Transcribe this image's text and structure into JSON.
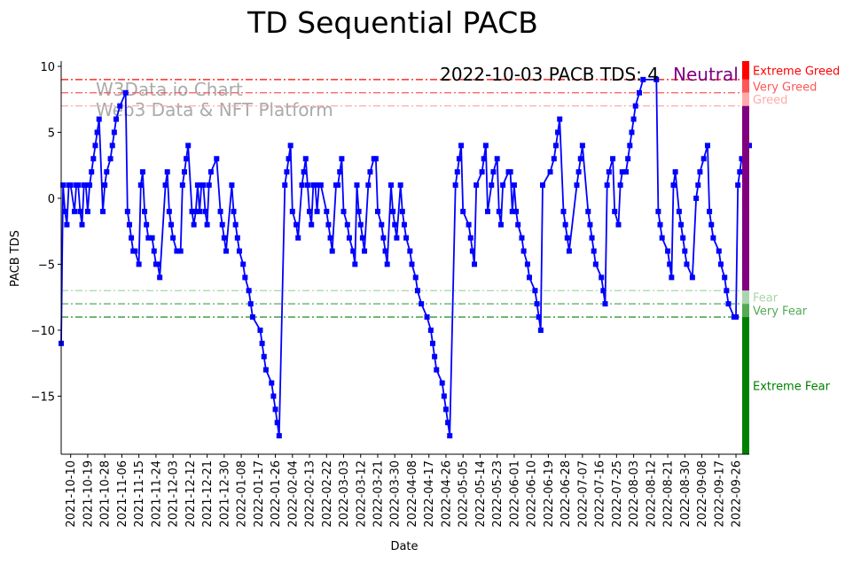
{
  "chart_data": {
    "type": "line",
    "title": "TD Sequential PACB",
    "xlabel": "Date",
    "ylabel": "PACB TDS",
    "start_date": "2021-10-05",
    "x_days": [
      0,
      1,
      2,
      3,
      4,
      5,
      7,
      8,
      9,
      10,
      11,
      12,
      13,
      14,
      15,
      16,
      17,
      18,
      19,
      20,
      22,
      23,
      24,
      26,
      27,
      28,
      29,
      31,
      34,
      35,
      36,
      37,
      38,
      39,
      41,
      42,
      43,
      44,
      45,
      46,
      48,
      49,
      50,
      51,
      52,
      55,
      56,
      57,
      58,
      59,
      61,
      63,
      64,
      65,
      66,
      67,
      69,
      70,
      71,
      72,
      73,
      74,
      75,
      76,
      77,
      78,
      79,
      82,
      84,
      85,
      86,
      87,
      90,
      91,
      92,
      93,
      94,
      96,
      97,
      99,
      100,
      101,
      105,
      106,
      107,
      108,
      111,
      112,
      113,
      114,
      115,
      118,
      119,
      120,
      121,
      122,
      124,
      125,
      127,
      128,
      129,
      130,
      131,
      132,
      133,
      134,
      135,
      136,
      137,
      140,
      141,
      142,
      143,
      145,
      146,
      147,
      148,
      149,
      151,
      152,
      154,
      155,
      156,
      157,
      158,
      159,
      160,
      162,
      163,
      165,
      166,
      167,
      169,
      170,
      171,
      172,
      174,
      175,
      176,
      177,
      179,
      180,
      181,
      182,
      184,
      185,
      187,
      188,
      190,
      193,
      195,
      196,
      197,
      198,
      201,
      202,
      203,
      204,
      205,
      208,
      209,
      210,
      211,
      212,
      215,
      216,
      217,
      218,
      219,
      222,
      223,
      224,
      225,
      227,
      228,
      230,
      231,
      232,
      233,
      236,
      237,
      238,
      239,
      240,
      241,
      243,
      244,
      246,
      247,
      250,
      251,
      252,
      253,
      254,
      258,
      260,
      261,
      262,
      263,
      265,
      266,
      267,
      268,
      272,
      273,
      274,
      275,
      278,
      279,
      280,
      281,
      282,
      285,
      286,
      287,
      288,
      289,
      291,
      292,
      294,
      295,
      296,
      298,
      299,
      300,
      301,
      302,
      303,
      305,
      307,
      314,
      315,
      316,
      317,
      320,
      321,
      322,
      323,
      324,
      326,
      327,
      328,
      329,
      330,
      333,
      335,
      336,
      337,
      339,
      341,
      342,
      343,
      344,
      347,
      348,
      350,
      351,
      352,
      355,
      356,
      357,
      358,
      359,
      363
    ],
    "values": [
      -11,
      1,
      -1,
      -2,
      1,
      1,
      -1,
      1,
      1,
      -1,
      -2,
      1,
      1,
      -1,
      1,
      2,
      3,
      4,
      5,
      6,
      -1,
      1,
      2,
      3,
      4,
      5,
      6,
      7,
      8,
      -1,
      -2,
      -3,
      -4,
      -4,
      -5,
      1,
      2,
      -1,
      -2,
      -3,
      -3,
      -4,
      -5,
      -5,
      -6,
      1,
      2,
      -1,
      -2,
      -3,
      -4,
      -4,
      1,
      2,
      3,
      4,
      -1,
      -2,
      -1,
      1,
      -1,
      1,
      1,
      -1,
      -2,
      1,
      2,
      3,
      -1,
      -2,
      -3,
      -4,
      1,
      -1,
      -2,
      -3,
      -4,
      -5,
      -6,
      -7,
      -8,
      -9,
      -10,
      -11,
      -12,
      -13,
      -14,
      -15,
      -16,
      -17,
      -18,
      1,
      2,
      3,
      4,
      -1,
      -2,
      -3,
      1,
      2,
      3,
      1,
      -1,
      -2,
      1,
      1,
      -1,
      1,
      1,
      -1,
      -2,
      -3,
      -4,
      1,
      1,
      2,
      3,
      -1,
      -2,
      -3,
      -4,
      -5,
      1,
      -1,
      -2,
      -3,
      -4,
      1,
      2,
      3,
      3,
      -1,
      -2,
      -3,
      -4,
      -5,
      1,
      -1,
      -2,
      -3,
      1,
      -1,
      -2,
      -3,
      -4,
      -5,
      -6,
      -7,
      -8,
      -9,
      -10,
      -11,
      -12,
      -13,
      -14,
      -15,
      -16,
      -17,
      -18,
      1,
      2,
      3,
      4,
      -1,
      -2,
      -3,
      -4,
      -5,
      1,
      2,
      3,
      4,
      -1,
      1,
      2,
      3,
      -1,
      -2,
      1,
      2,
      2,
      -1,
      1,
      -1,
      -2,
      -3,
      -4,
      -5,
      -6,
      -7,
      -8,
      -9,
      -10,
      1,
      2,
      3,
      4,
      5,
      6,
      -1,
      -2,
      -3,
      -4,
      1,
      2,
      3,
      4,
      -1,
      -2,
      -3,
      -4,
      -5,
      -6,
      -7,
      -8,
      1,
      2,
      3,
      -1,
      -2,
      1,
      2,
      2,
      3,
      4,
      5,
      6,
      7,
      8,
      9,
      9,
      -1,
      -2,
      -3,
      -4,
      -5,
      -6,
      1,
      2,
      -1,
      -2,
      -3,
      -4,
      -5,
      -6,
      0,
      1,
      2,
      3,
      4,
      -1,
      -2,
      -3,
      -4,
      -5,
      -6,
      -7,
      -8,
      -9,
      -9,
      1,
      2,
      3,
      4
    ],
    "series_color": "#0000ff",
    "ylim": [
      -19.4,
      10.4
    ],
    "yticks": [
      10,
      5,
      0,
      -5,
      -10,
      -15
    ],
    "xtick_labels": [
      "2021-10-10",
      "2021-10-19",
      "2021-10-28",
      "2021-11-06",
      "2021-11-15",
      "2021-11-24",
      "2021-12-03",
      "2021-12-12",
      "2021-12-21",
      "2021-12-30",
      "2022-01-08",
      "2022-01-17",
      "2022-01-26",
      "2022-02-04",
      "2022-02-13",
      "2022-02-22",
      "2022-03-03",
      "2022-03-12",
      "2022-03-21",
      "2022-03-30",
      "2022-04-08",
      "2022-04-17",
      "2022-04-26",
      "2022-05-05",
      "2022-05-14",
      "2022-05-23",
      "2022-06-01",
      "2022-06-10",
      "2022-06-19",
      "2022-06-28",
      "2022-07-07",
      "2022-07-16",
      "2022-07-25",
      "2022-08-03",
      "2022-08-12",
      "2022-08-21",
      "2022-08-30",
      "2022-09-08",
      "2022-09-17",
      "2022-09-26"
    ],
    "thresholds": [
      {
        "value": 9,
        "color": "#ff0000"
      },
      {
        "value": 8,
        "color": "#ff5555"
      },
      {
        "value": 7,
        "color": "#ffaaaa"
      },
      {
        "value": -7,
        "color": "#aad5aa"
      },
      {
        "value": -8,
        "color": "#55aa55"
      },
      {
        "value": -9,
        "color": "#008000"
      }
    ],
    "zones": [
      {
        "label": "Extreme Greed",
        "from": 9,
        "to": 10.4,
        "color": "#ff0000",
        "label_value": 9.7
      },
      {
        "label": "Very Greed",
        "from": 8,
        "to": 9,
        "color": "#ff5555",
        "label_value": 8.5
      },
      {
        "label": "Greed",
        "from": 7,
        "to": 8,
        "color": "#ffaaaa",
        "label_value": 7.5
      },
      {
        "label": "",
        "from": -7,
        "to": 7,
        "color": "#800080",
        "label_value": 0
      },
      {
        "label": "Fear",
        "from": -8,
        "to": -7,
        "color": "#aad5aa",
        "label_value": -7.5
      },
      {
        "label": "Very Fear",
        "from": -9,
        "to": -8,
        "color": "#55aa55",
        "label_value": -8.5
      },
      {
        "label": "Extreme Fear",
        "from": -19.4,
        "to": -9,
        "color": "#008000",
        "label_value": -14.2
      }
    ],
    "annotation": {
      "text": "2022-10-03 PACB TDS: 4",
      "status": "Neutral",
      "status_color": "#800080"
    },
    "watermark": [
      "W3Data.io Chart",
      "Web3 Data & NFT Platform"
    ]
  }
}
